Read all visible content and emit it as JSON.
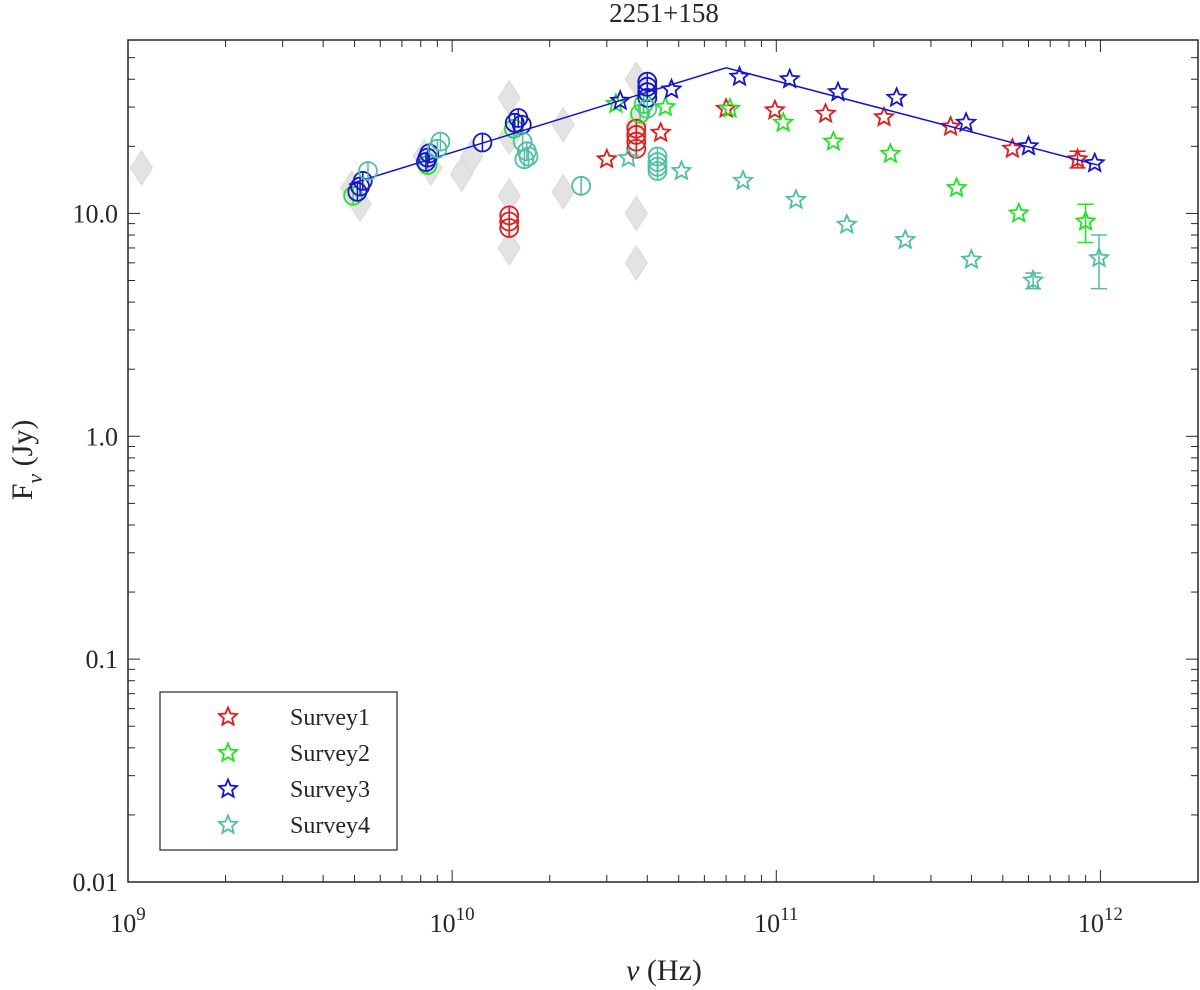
{
  "chart_data": {
    "type": "scatter",
    "title": "2251+158",
    "xlabel": "ν (Hz)",
    "ylabel": "F_ν (Jy)",
    "xscale": "log",
    "yscale": "log",
    "xlim": [
      1000000000.0,
      2000000000000.0
    ],
    "ylim": [
      0.01,
      60
    ],
    "grid": false,
    "legend_position": "bottom-left",
    "x_ticks": [
      1000000000.0,
      10000000000.0,
      100000000000.0,
      1000000000000.0
    ],
    "x_tick_labels": [
      {
        "base": "10",
        "exp": "9"
      },
      {
        "base": "10",
        "exp": "10"
      },
      {
        "base": "10",
        "exp": "11"
      },
      {
        "base": "10",
        "exp": "12"
      }
    ],
    "y_ticks": [
      0.01,
      0.1,
      1,
      10
    ],
    "y_tick_labels": [
      "0.01",
      "0.1",
      "1.0",
      "10.0"
    ],
    "archival": {
      "color": "#e3e3e3",
      "points": [
        {
          "x": 1100000000.0,
          "y": 16
        },
        {
          "x": 4900000000.0,
          "y": 13
        },
        {
          "x": 5200000000.0,
          "y": 11
        },
        {
          "x": 8200000000.0,
          "y": 18
        },
        {
          "x": 8600000000.0,
          "y": 16
        },
        {
          "x": 10700000000.0,
          "y": 15
        },
        {
          "x": 11500000000.0,
          "y": 18
        },
        {
          "x": 15000000000.0,
          "y": 33
        },
        {
          "x": 15000000000.0,
          "y": 7
        },
        {
          "x": 15000000000.0,
          "y": 12
        },
        {
          "x": 15000000000.0,
          "y": 22
        },
        {
          "x": 22000000000.0,
          "y": 25
        },
        {
          "x": 22000000000.0,
          "y": 12.5
        },
        {
          "x": 37000000000.0,
          "y": 40
        },
        {
          "x": 37000000000.0,
          "y": 6
        },
        {
          "x": 37000000000.0,
          "y": 10
        },
        {
          "x": 37000000000.0,
          "y": 25
        }
      ]
    },
    "series": [
      {
        "name": "Survey1",
        "color": "#e41a1a",
        "stars": [
          {
            "x": 30000000000.0,
            "y": 17.5
          },
          {
            "x": 44000000000.0,
            "y": 23
          },
          {
            "x": 70000000000.0,
            "y": 29.5
          },
          {
            "x": 99000000000.0,
            "y": 29
          },
          {
            "x": 142000000000.0,
            "y": 28
          },
          {
            "x": 215000000000.0,
            "y": 27
          },
          {
            "x": 345000000000.0,
            "y": 24.5
          },
          {
            "x": 535000000000.0,
            "y": 19.5
          },
          {
            "x": 850000000000.0,
            "y": 17.5,
            "err": 1.5
          }
        ],
        "circles": [
          {
            "x": 15000000000.0,
            "y": 9.8
          },
          {
            "x": 15000000000.0,
            "y": 9.2
          },
          {
            "x": 15000000000.0,
            "y": 8.6
          },
          {
            "x": 37000000000.0,
            "y": 24
          },
          {
            "x": 37000000000.0,
            "y": 22.5
          },
          {
            "x": 37000000000.0,
            "y": 21
          },
          {
            "x": 37000000000.0,
            "y": 19.5
          }
        ]
      },
      {
        "name": "Survey2",
        "color": "#1ee61e",
        "stars": [
          {
            "x": 32000000000.0,
            "y": 31
          },
          {
            "x": 45500000000.0,
            "y": 30
          },
          {
            "x": 72000000000.0,
            "y": 29.5
          },
          {
            "x": 105000000000.0,
            "y": 25.5
          },
          {
            "x": 150000000000.0,
            "y": 21
          },
          {
            "x": 225000000000.0,
            "y": 18.5
          },
          {
            "x": 360000000000.0,
            "y": 13
          },
          {
            "x": 560000000000.0,
            "y": 10
          },
          {
            "x": 900000000000.0,
            "y": 9.2,
            "err": 1.8
          }
        ],
        "circles": [
          {
            "x": 4950000000.0,
            "y": 12
          },
          {
            "x": 8400000000.0,
            "y": 16.5
          },
          {
            "x": 15500000000.0,
            "y": 24
          },
          {
            "x": 38000000000.0,
            "y": 28
          },
          {
            "x": 39000000000.0,
            "y": 31
          },
          {
            "x": 40000000000.0,
            "y": 35
          }
        ]
      },
      {
        "name": "Survey3",
        "color": "#1414d2",
        "stars": [
          {
            "x": 33000000000.0,
            "y": 32
          },
          {
            "x": 47500000000.0,
            "y": 36
          },
          {
            "x": 77000000000.0,
            "y": 41
          },
          {
            "x": 110000000000.0,
            "y": 40
          },
          {
            "x": 155000000000.0,
            "y": 35
          },
          {
            "x": 235000000000.0,
            "y": 33
          },
          {
            "x": 385000000000.0,
            "y": 25.5
          },
          {
            "x": 600000000000.0,
            "y": 20
          },
          {
            "x": 960000000000.0,
            "y": 16.8
          }
        ],
        "circles": [
          {
            "x": 5100000000.0,
            "y": 12.5
          },
          {
            "x": 5200000000.0,
            "y": 13.2
          },
          {
            "x": 5300000000.0,
            "y": 14
          },
          {
            "x": 8300000000.0,
            "y": 17
          },
          {
            "x": 8400000000.0,
            "y": 17.8
          },
          {
            "x": 8500000000.0,
            "y": 18.6
          },
          {
            "x": 12400000000.0,
            "y": 20.8
          },
          {
            "x": 15600000000.0,
            "y": 25.5
          },
          {
            "x": 16000000000.0,
            "y": 26.8
          },
          {
            "x": 16400000000.0,
            "y": 25
          },
          {
            "x": 40000000000.0,
            "y": 33
          },
          {
            "x": 40000000000.0,
            "y": 35
          },
          {
            "x": 40000000000.0,
            "y": 37
          },
          {
            "x": 40000000000.0,
            "y": 39
          }
        ],
        "fit_line": [
          {
            "x": 4800000000.0,
            "y": 13.5
          },
          {
            "x": 70000000000.0,
            "y": 45
          },
          {
            "x": 980000000000.0,
            "y": 16.5
          }
        ]
      },
      {
        "name": "Survey4",
        "color": "#4dbfa5",
        "stars": [
          {
            "x": 35000000000.0,
            "y": 17.7
          },
          {
            "x": 51000000000.0,
            "y": 15.5
          },
          {
            "x": 79000000000.0,
            "y": 14
          },
          {
            "x": 115000000000.0,
            "y": 11.5
          },
          {
            "x": 165000000000.0,
            "y": 8.9
          },
          {
            "x": 250000000000.0,
            "y": 7.6
          },
          {
            "x": 400000000000.0,
            "y": 6.2
          },
          {
            "x": 620000000000.0,
            "y": 5,
            "err": 0.4
          },
          {
            "x": 990000000000.0,
            "y": 6.3,
            "err": 1.7
          }
        ],
        "circles": [
          {
            "x": 5500000000.0,
            "y": 15.5
          },
          {
            "x": 9200000000.0,
            "y": 21
          },
          {
            "x": 9000000000.0,
            "y": 19.5
          },
          {
            "x": 16500000000.0,
            "y": 21
          },
          {
            "x": 17000000000.0,
            "y": 19
          },
          {
            "x": 17200000000.0,
            "y": 18
          },
          {
            "x": 16700000000.0,
            "y": 17.5
          },
          {
            "x": 25000000000.0,
            "y": 13.3
          },
          {
            "x": 40000000000.0,
            "y": 29.5
          },
          {
            "x": 43000000000.0,
            "y": 18
          },
          {
            "x": 43000000000.0,
            "y": 17
          },
          {
            "x": 43000000000.0,
            "y": 16.2
          },
          {
            "x": 43000000000.0,
            "y": 15.5
          }
        ]
      }
    ]
  }
}
